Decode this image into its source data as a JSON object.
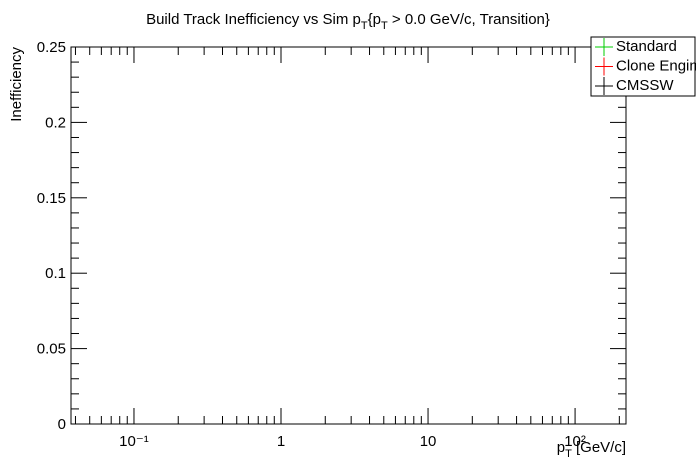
{
  "chart_data": {
    "type": "line",
    "title": [
      {
        "text": "Build Track Inefficiency vs Sim p"
      },
      {
        "text": "T",
        "sub": true
      },
      {
        "text": "{p"
      },
      {
        "text": "T",
        "sub": true
      },
      {
        "text": " > 0.0 GeV/c, Transition}"
      }
    ],
    "x_label": [
      {
        "text": "p"
      },
      {
        "text": "T",
        "sub": true
      },
      {
        "text": " [GeV/c]"
      }
    ],
    "y_label": "Inefficiency",
    "x_log": true,
    "xlim": [
      0.0373,
      222
    ],
    "xticks": [
      {
        "value": 0.1,
        "label": "10⁻¹"
      },
      1,
      10,
      {
        "value": 100,
        "label": "10²"
      }
    ],
    "ylim": [
      0,
      0.25
    ],
    "yticks": [
      0,
      0.05,
      0.1,
      0.15,
      0.2,
      0.25
    ],
    "grid": false,
    "legend": "top-right",
    "series": [
      {
        "name": "Standard",
        "color": "#00cc00",
        "x": [],
        "values": []
      },
      {
        "name": "Clone Engine",
        "color": "#ff0000",
        "x": [],
        "values": []
      },
      {
        "name": "CMSSW",
        "color": "#000000",
        "x": [],
        "values": []
      }
    ]
  }
}
